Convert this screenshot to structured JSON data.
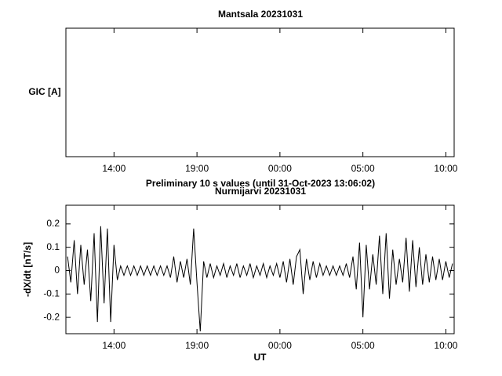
{
  "chart_data": [
    {
      "type": "line",
      "title": "Mantsala 20231031",
      "ylabel": "GIC [A]",
      "xlim": [
        11.1,
        34.5
      ],
      "xticks": [
        {
          "value": 14,
          "label": "14:00"
        },
        {
          "value": 19,
          "label": "19:00"
        },
        {
          "value": 24,
          "label": "00:00"
        },
        {
          "value": 29,
          "label": "05:00"
        },
        {
          "value": 34,
          "label": "10:00"
        }
      ]
    },
    {
      "type": "line",
      "subtitle": "Preliminary 10 s values (until 31-Oct-2023 13:06:02)",
      "title": "Nurmijarvi 20231031",
      "xlabel": "UT",
      "ylabel": "-dX/dt [nT/s]",
      "xlim": [
        11.1,
        34.5
      ],
      "ylim": [
        -0.27,
        0.28
      ],
      "xticks": [
        {
          "value": 14,
          "label": "14:00"
        },
        {
          "value": 19,
          "label": "19:00"
        },
        {
          "value": 24,
          "label": "00:00"
        },
        {
          "value": 29,
          "label": "05:00"
        },
        {
          "value": 34,
          "label": "10:00"
        }
      ],
      "yticks": [
        -0.2,
        -0.1,
        0,
        0.1,
        0.2
      ],
      "color": "#000000",
      "x": [
        11.2,
        11.4,
        11.6,
        11.8,
        12.0,
        12.2,
        12.4,
        12.6,
        12.8,
        13.0,
        13.2,
        13.4,
        13.6,
        13.8,
        14.0,
        14.2,
        14.4,
        14.6,
        14.8,
        15.0,
        15.2,
        15.4,
        15.6,
        15.8,
        16.0,
        16.2,
        16.4,
        16.6,
        16.8,
        17.0,
        17.2,
        17.4,
        17.6,
        17.8,
        18.0,
        18.2,
        18.4,
        18.6,
        18.8,
        19.0,
        19.2,
        19.4,
        19.6,
        19.8,
        20.0,
        20.2,
        20.4,
        20.6,
        20.8,
        21.0,
        21.2,
        21.4,
        21.6,
        21.8,
        22.0,
        22.2,
        22.4,
        22.6,
        22.8,
        23.0,
        23.2,
        23.4,
        23.6,
        23.8,
        24.0,
        24.2,
        24.4,
        24.6,
        24.8,
        25.0,
        25.2,
        25.4,
        25.6,
        25.8,
        26.0,
        26.2,
        26.4,
        26.6,
        26.8,
        27.0,
        27.2,
        27.4,
        27.6,
        27.8,
        28.0,
        28.2,
        28.4,
        28.6,
        28.8,
        29.0,
        29.2,
        29.4,
        29.6,
        29.8,
        30.0,
        30.2,
        30.4,
        30.6,
        30.8,
        31.0,
        31.2,
        31.4,
        31.6,
        31.8,
        32.0,
        32.2,
        32.4,
        32.6,
        32.8,
        33.0,
        33.2,
        33.4,
        33.6,
        33.8,
        34.0,
        34.2,
        34.4
      ],
      "values": [
        0.06,
        -0.05,
        0.13,
        -0.1,
        0.11,
        -0.06,
        0.09,
        -0.13,
        0.16,
        -0.22,
        0.19,
        -0.14,
        0.18,
        -0.22,
        0.11,
        -0.04,
        0.02,
        -0.02,
        0.02,
        -0.02,
        0.02,
        -0.02,
        0.02,
        -0.02,
        0.02,
        -0.02,
        0.02,
        -0.02,
        0.02,
        -0.02,
        0.02,
        -0.03,
        0.06,
        -0.05,
        0.04,
        -0.03,
        0.05,
        -0.06,
        0.18,
        -0.05,
        -0.26,
        0.04,
        -0.03,
        0.03,
        -0.03,
        0.02,
        -0.02,
        0.03,
        -0.03,
        0.02,
        -0.02,
        0.03,
        -0.03,
        0.02,
        -0.02,
        0.03,
        -0.03,
        0.02,
        -0.02,
        0.03,
        -0.03,
        0.02,
        -0.02,
        0.03,
        -0.03,
        0.04,
        -0.05,
        0.05,
        -0.06,
        0.06,
        0.09,
        -0.1,
        0.05,
        -0.04,
        0.04,
        -0.03,
        0.03,
        -0.02,
        0.02,
        -0.02,
        0.02,
        -0.02,
        0.02,
        -0.02,
        0.03,
        -0.03,
        0.06,
        -0.08,
        0.12,
        -0.2,
        0.11,
        -0.08,
        0.07,
        -0.06,
        0.15,
        -0.1,
        0.16,
        -0.12,
        0.09,
        -0.06,
        0.05,
        -0.05,
        0.14,
        -0.09,
        0.13,
        -0.07,
        0.1,
        -0.06,
        0.07,
        -0.05,
        0.06,
        -0.04,
        0.05,
        -0.04,
        0.04,
        -0.03,
        0.03
      ]
    }
  ]
}
